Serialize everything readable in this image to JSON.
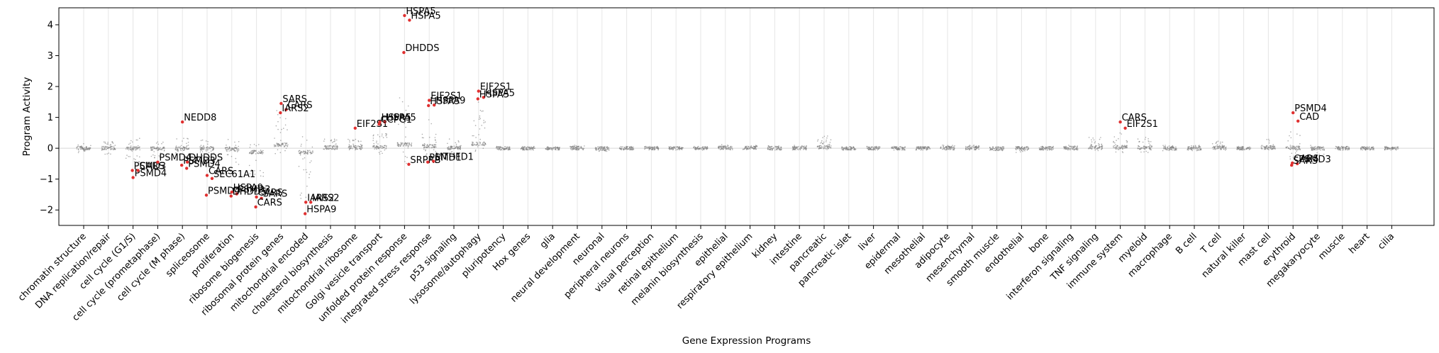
{
  "chart_data": {
    "type": "scatter",
    "subtype": "strip plot (jittered)",
    "xlabel": "Gene Expression Programs",
    "ylabel": "Program Activity",
    "ylim": [
      -2.5,
      4.55
    ],
    "yticks": [
      -2,
      -1,
      0,
      1,
      2,
      3,
      4
    ],
    "zero_line": true,
    "grid": "vertical lines at each category",
    "point_color": "#808080",
    "highlight_color": "#e03030",
    "categories": [
      "chromatin structure",
      "DNA replication/repair",
      "cell cycle (G1/S)",
      "cell cycle (prometaphase)",
      "cell cycle (M phase)",
      "spliceosome",
      "proliferation",
      "ribosome biogenesis",
      "ribosomal protein genes",
      "mitochondrial encoded",
      "cholesterol biosynthesis",
      "mitochondrial ribosome",
      "Golgi vesicle transport",
      "unfolded protein response",
      "integrated stress response",
      "p53 signaling",
      "lysosome/autophagy",
      "pluripotency",
      "Hox genes",
      "glia",
      "neural development",
      "neuronal",
      "peripheral neurons",
      "visual perception",
      "retinal epithelium",
      "melanin biosynthesis",
      "epithelial",
      "respiratory epithelium",
      "kidney",
      "intestine",
      "pancreatic",
      "pancreatic islet",
      "liver",
      "epidermal",
      "mesothelial",
      "adipocyte",
      "mesenchymal",
      "smooth muscle",
      "endothelial",
      "bone",
      "interferon signaling",
      "TNF signaling",
      "immune system",
      "myeloid",
      "macrophage",
      "B cell",
      "T cell",
      "natural killer",
      "mast cell",
      "erythroid",
      "megakaryocyte",
      "muscle",
      "heart",
      "cilia"
    ],
    "spread_min": [
      -0.15,
      -0.2,
      -0.45,
      -0.35,
      -0.4,
      -0.35,
      -0.6,
      -1.4,
      -0.2,
      -1.7,
      -0.05,
      -0.1,
      -0.2,
      -0.5,
      -0.35,
      -0.15,
      -0.1,
      -0.05,
      -0.03,
      -0.03,
      -0.05,
      -0.1,
      -0.05,
      -0.03,
      -0.03,
      -0.03,
      -0.03,
      -0.03,
      -0.05,
      -0.05,
      -0.05,
      -0.03,
      -0.03,
      -0.03,
      -0.03,
      -0.05,
      -0.05,
      -0.08,
      -0.15,
      -0.05,
      -0.05,
      -0.1,
      -0.15,
      -0.15,
      -0.1,
      -0.08,
      -0.08,
      -0.05,
      -0.05,
      -0.5,
      -0.2,
      -0.03,
      -0.03,
      -0.03
    ],
    "spread_max": [
      0.15,
      0.3,
      0.35,
      0.3,
      0.35,
      0.3,
      0.3,
      0.2,
      1.3,
      0.4,
      0.3,
      0.3,
      0.5,
      1.7,
      1.0,
      0.3,
      1.5,
      0.05,
      0.03,
      0.03,
      0.1,
      0.05,
      0.05,
      0.05,
      0.05,
      0.03,
      0.15,
      0.1,
      0.08,
      0.1,
      0.4,
      0.03,
      0.05,
      0.03,
      0.05,
      0.1,
      0.1,
      0.05,
      0.1,
      0.05,
      0.1,
      0.4,
      0.5,
      0.4,
      0.1,
      0.1,
      0.25,
      0.05,
      0.3,
      0.6,
      0.1,
      0.05,
      0.03,
      0.03
    ],
    "highlighted_genes": [
      {
        "category": "cell cycle (G1/S)",
        "gene": "PSMD4",
        "y": -0.95
      },
      {
        "category": "cell cycle (G1/S)",
        "gene": "CARS",
        "y": -0.72
      },
      {
        "category": "cell cycle (G1/S)",
        "gene": "PSMD3",
        "y": -0.72
      },
      {
        "category": "cell cycle (prometaphase)",
        "gene": "PSMD4",
        "y": -0.45
      },
      {
        "category": "cell cycle (M phase)",
        "gene": "NEDD8",
        "y": 0.85
      },
      {
        "category": "cell cycle (M phase)",
        "gene": "DHDDS",
        "y": -0.45
      },
      {
        "category": "cell cycle (M phase)",
        "gene": "PSMD3",
        "y": -0.55
      },
      {
        "category": "cell cycle (M phase)",
        "gene": "PSMD4",
        "y": -0.65
      },
      {
        "category": "spliceosome",
        "gene": "CARS",
        "y": -0.88
      },
      {
        "category": "spliceosome",
        "gene": "SEC61A1",
        "y": -0.98
      },
      {
        "category": "spliceosome",
        "gene": "PSMD4",
        "y": -1.52
      },
      {
        "category": "proliferation",
        "gene": "HSPA9",
        "y": -1.42
      },
      {
        "category": "proliferation",
        "gene": "PSMD3",
        "y": -1.48
      },
      {
        "category": "proliferation",
        "gene": "DHDDS",
        "y": -1.55
      },
      {
        "category": "ribosome biogenesis",
        "gene": "CARS",
        "y": -1.58
      },
      {
        "category": "ribosome biogenesis",
        "gene": "SARS",
        "y": -1.62
      },
      {
        "category": "ribosome biogenesis",
        "gene": "CARS",
        "y": -1.9
      },
      {
        "category": "ribosomal protein genes",
        "gene": "SARS",
        "y": 1.45
      },
      {
        "category": "ribosomal protein genes",
        "gene": "CARS",
        "y": 1.25
      },
      {
        "category": "ribosomal protein genes",
        "gene": "IARS2",
        "y": 1.15
      },
      {
        "category": "mitochondrial encoded",
        "gene": "IARS2",
        "y": -1.75
      },
      {
        "category": "mitochondrial encoded",
        "gene": "IARS2",
        "y": -1.75
      },
      {
        "category": "mitochondrial encoded",
        "gene": "HSPA9",
        "y": -2.12
      },
      {
        "category": "mitochondrial ribosome",
        "gene": "EIF2S1",
        "y": 0.65
      },
      {
        "category": "Golgi vesicle transport",
        "gene": "HSPA5",
        "y": 0.85
      },
      {
        "category": "Golgi vesicle transport",
        "gene": "HSPA5",
        "y": 0.85
      },
      {
        "category": "Golgi vesicle transport",
        "gene": "CCPG1",
        "y": 0.78
      },
      {
        "category": "unfolded protein response",
        "gene": "HSPA5",
        "y": 4.3
      },
      {
        "category": "unfolded protein response",
        "gene": "HSPA5",
        "y": 4.15
      },
      {
        "category": "unfolded protein response",
        "gene": "DHDDS",
        "y": 3.1
      },
      {
        "category": "unfolded protein response",
        "gene": "SRPRB",
        "y": -0.52
      },
      {
        "category": "integrated stress response",
        "gene": "EIF2S1",
        "y": 1.55
      },
      {
        "category": "integrated stress response",
        "gene": "HSPA9",
        "y": 1.4
      },
      {
        "category": "integrated stress response",
        "gene": "HSPA5",
        "y": 1.38
      },
      {
        "category": "integrated stress response",
        "gene": "MTHFD1",
        "y": -0.42
      },
      {
        "category": "integrated stress response",
        "gene": "PSMD1",
        "y": -0.45
      },
      {
        "category": "lysosome/autophagy",
        "gene": "EIF2S1",
        "y": 1.85
      },
      {
        "category": "lysosome/autophagy",
        "gene": "HSPA5",
        "y": 1.65
      },
      {
        "category": "lysosome/autophagy",
        "gene": "HSPA5",
        "y": 1.6
      },
      {
        "category": "immune system",
        "gene": "CARS",
        "y": 0.85
      },
      {
        "category": "immune system",
        "gene": "EIF2S1",
        "y": 0.65
      },
      {
        "category": "erythroid",
        "gene": "PSMD4",
        "y": 1.15
      },
      {
        "category": "erythroid",
        "gene": "CAD",
        "y": 0.88
      },
      {
        "category": "erythroid",
        "gene": "CARS",
        "y": -0.48
      },
      {
        "category": "erythroid",
        "gene": "PSMD3",
        "y": -0.5
      },
      {
        "category": "erythroid",
        "gene": "SARS",
        "y": -0.55
      }
    ]
  }
}
